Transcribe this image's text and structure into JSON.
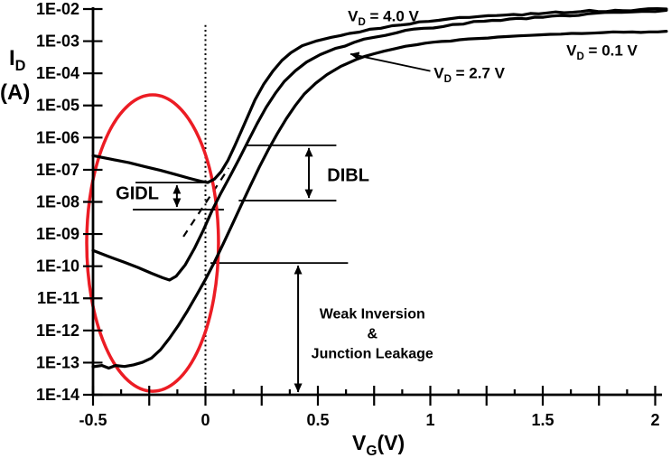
{
  "chart_data": {
    "type": "line",
    "title": "",
    "xlabel": "VG (V)",
    "ylabel": "ID (A)",
    "x_axis": {
      "min": -0.5,
      "max": 2.0,
      "minor_step": 0.125,
      "major_step": 0.25,
      "label_base": "V",
      "label_sub": "G",
      "label_unit": "(V)",
      "labeled_ticks": [
        {
          "v": -0.5,
          "label": "-0.5"
        },
        {
          "v": 0,
          "label": "0"
        },
        {
          "v": 0.5,
          "label": "0.5"
        },
        {
          "v": 1,
          "label": "1"
        },
        {
          "v": 1.5,
          "label": "1.5"
        },
        {
          "v": 2,
          "label": "2"
        }
      ]
    },
    "y_axis": {
      "scale": "log",
      "label_base": "I",
      "label_sub": "D",
      "label_unit": "(A)",
      "ticks": [
        {
          "exp": -2,
          "label": "1E-02"
        },
        {
          "exp": -3,
          "label": "1E-03"
        },
        {
          "exp": -4,
          "label": "1E-04"
        },
        {
          "exp": -5,
          "label": "1E-05"
        },
        {
          "exp": -6,
          "label": "1E-06"
        },
        {
          "exp": -7,
          "label": "1E-07"
        },
        {
          "exp": -8,
          "label": "1E-08"
        },
        {
          "exp": -9,
          "label": "1E-09"
        },
        {
          "exp": -10,
          "label": "1E-10"
        },
        {
          "exp": -11,
          "label": "1E-11"
        },
        {
          "exp": -12,
          "label": "1E-12"
        },
        {
          "exp": -13,
          "label": "1E-13"
        },
        {
          "exp": -14,
          "label": "1E-14"
        }
      ]
    },
    "series": [
      {
        "name": "VD = 4.0 V",
        "label": {
          "base": "V",
          "sub": "D",
          "text": " = 4.0 V"
        },
        "noise_amp": 2.3,
        "points": [
          [
            -0.5,
            -6.56
          ],
          [
            -0.42,
            -6.67
          ],
          [
            -0.34,
            -6.78
          ],
          [
            -0.27,
            -6.9
          ],
          [
            -0.2,
            -7.02
          ],
          [
            -0.13,
            -7.15
          ],
          [
            -0.07,
            -7.27
          ],
          [
            -0.02,
            -7.36
          ],
          [
            0.01,
            -7.4
          ],
          [
            0.04,
            -7.29
          ],
          [
            0.07,
            -7.06
          ],
          [
            0.1,
            -6.71
          ],
          [
            0.13,
            -6.26
          ],
          [
            0.16,
            -5.79
          ],
          [
            0.19,
            -5.31
          ],
          [
            0.22,
            -4.83
          ],
          [
            0.26,
            -4.33
          ],
          [
            0.3,
            -3.93
          ],
          [
            0.34,
            -3.6
          ],
          [
            0.38,
            -3.36
          ],
          [
            0.43,
            -3.14
          ],
          [
            0.49,
            -3.0
          ],
          [
            0.56,
            -2.88
          ],
          [
            0.64,
            -2.76
          ],
          [
            0.73,
            -2.63
          ],
          [
            0.83,
            -2.52
          ],
          [
            0.95,
            -2.4
          ],
          [
            1.08,
            -2.31
          ],
          [
            1.22,
            -2.23
          ],
          [
            1.37,
            -2.17
          ],
          [
            1.52,
            -2.12
          ],
          [
            1.67,
            -2.08
          ],
          [
            1.82,
            -2.04
          ],
          [
            1.93,
            -2.02
          ],
          [
            2.05,
            -2.0
          ]
        ]
      },
      {
        "name": "VD = 2.7 V",
        "label": {
          "base": "V",
          "sub": "D",
          "text": " = 2.7 V"
        },
        "noise_amp": 2.3,
        "points": [
          [
            -0.5,
            -9.51
          ],
          [
            -0.43,
            -9.7
          ],
          [
            -0.36,
            -9.88
          ],
          [
            -0.3,
            -10.04
          ],
          [
            -0.24,
            -10.22
          ],
          [
            -0.19,
            -10.36
          ],
          [
            -0.16,
            -10.43
          ],
          [
            -0.13,
            -10.31
          ],
          [
            -0.09,
            -9.96
          ],
          [
            -0.05,
            -9.46
          ],
          [
            -0.01,
            -8.89
          ],
          [
            0.03,
            -8.26
          ],
          [
            0.07,
            -7.71
          ],
          [
            0.11,
            -7.19
          ],
          [
            0.15,
            -6.66
          ],
          [
            0.19,
            -6.11
          ],
          [
            0.23,
            -5.56
          ],
          [
            0.27,
            -5.06
          ],
          [
            0.31,
            -4.63
          ],
          [
            0.35,
            -4.26
          ],
          [
            0.4,
            -3.92
          ],
          [
            0.45,
            -3.65
          ],
          [
            0.51,
            -3.42
          ],
          [
            0.58,
            -3.22
          ],
          [
            0.66,
            -3.04
          ],
          [
            0.75,
            -2.88
          ],
          [
            0.85,
            -2.74
          ],
          [
            0.97,
            -2.6
          ],
          [
            1.1,
            -2.48
          ],
          [
            1.24,
            -2.38
          ],
          [
            1.39,
            -2.29
          ],
          [
            1.54,
            -2.22
          ],
          [
            1.7,
            -2.15
          ],
          [
            1.85,
            -2.1
          ],
          [
            1.95,
            -2.07
          ],
          [
            2.05,
            -2.04
          ]
        ]
      },
      {
        "name": "VD = 0.1 V",
        "label": {
          "base": "V",
          "sub": "D",
          "text": " = 0.1 V"
        },
        "noise_amp": 1.4,
        "points": [
          [
            -0.5,
            -13.13
          ],
          [
            -0.46,
            -13.09
          ],
          [
            -0.43,
            -13.17
          ],
          [
            -0.4,
            -13.09
          ],
          [
            -0.36,
            -13.12
          ],
          [
            -0.32,
            -13.07
          ],
          [
            -0.28,
            -12.99
          ],
          [
            -0.24,
            -12.86
          ],
          [
            -0.2,
            -12.6
          ],
          [
            -0.16,
            -12.24
          ],
          [
            -0.12,
            -11.84
          ],
          [
            -0.08,
            -11.39
          ],
          [
            -0.04,
            -10.91
          ],
          [
            0.0,
            -10.41
          ],
          [
            0.04,
            -9.87
          ],
          [
            0.08,
            -9.29
          ],
          [
            0.12,
            -8.69
          ],
          [
            0.16,
            -8.09
          ],
          [
            0.2,
            -7.49
          ],
          [
            0.24,
            -6.91
          ],
          [
            0.28,
            -6.37
          ],
          [
            0.32,
            -5.87
          ],
          [
            0.36,
            -5.41
          ],
          [
            0.4,
            -5.0
          ],
          [
            0.44,
            -4.64
          ],
          [
            0.49,
            -4.31
          ],
          [
            0.54,
            -4.04
          ],
          [
            0.6,
            -3.79
          ],
          [
            0.67,
            -3.57
          ],
          [
            0.75,
            -3.39
          ],
          [
            0.84,
            -3.24
          ],
          [
            0.94,
            -3.11
          ],
          [
            1.05,
            -3.01
          ],
          [
            1.17,
            -2.93
          ],
          [
            1.3,
            -2.87
          ],
          [
            1.44,
            -2.82
          ],
          [
            1.58,
            -2.78
          ],
          [
            1.72,
            -2.75
          ],
          [
            1.86,
            -2.72
          ],
          [
            2.05,
            -2.69
          ]
        ]
      }
    ],
    "annotations": {
      "vline": {
        "v": 0,
        "top_log": -2.5,
        "bottom_log": -14
      },
      "dashed_line": {
        "from": [
          -0.098,
          -9.08
        ],
        "to": [
          0.103,
          -6.95
        ]
      },
      "ellipse": {
        "center_v": -0.235,
        "center_log": -9.28,
        "rx_v": 0.293,
        "ry_dec": 4.61
      },
      "gidl": {
        "label": "GIDL",
        "label_pos": [
          -0.303,
          -7.72
        ],
        "top_line": {
          "log": -7.4,
          "v1": -0.311,
          "v2": 0.018
        },
        "bottom_line": {
          "log": -8.24,
          "v1": -0.323,
          "v2": 0.082
        },
        "arrow_v": -0.127
      },
      "dibl": {
        "label": "DIBL",
        "label_pos": [
          0.635,
          -7.15
        ],
        "top_line": {
          "log": -6.24,
          "v1": 0.175,
          "v2": 0.582
        },
        "bottom_line": {
          "log": -7.96,
          "v1": 0.148,
          "v2": 0.582
        },
        "arrow_v": 0.46
      },
      "weak_inversion": {
        "label_lines": [
          "Weak Inversion",
          "&",
          "Junction Leakage"
        ],
        "label_v": 0.742,
        "label_logs": [
          -11.62,
          -12.24,
          -12.86
        ],
        "ref_line": {
          "log": -9.9,
          "v1": 0.022,
          "v2": 0.634
        },
        "arrow_v": 0.412,
        "arrow_bottom_log": -14
      },
      "curve_labels": [
        {
          "series": 0,
          "pos": [
            0.633,
            -2.38
          ],
          "anchor": "start"
        },
        {
          "series": 1,
          "pos": [
            1.015,
            -4.15
          ],
          "anchor": "start",
          "pointer": {
            "from": [
              1.0,
              -3.93
            ],
            "to": [
              0.645,
              -3.4
            ]
          }
        },
        {
          "series": 2,
          "pos": [
            1.605,
            -3.45
          ],
          "anchor": "start"
        }
      ]
    },
    "colors": {
      "curve": "#000000",
      "ellipse": "#ec1c24",
      "text": "#000000",
      "background": "#ffffff"
    }
  }
}
